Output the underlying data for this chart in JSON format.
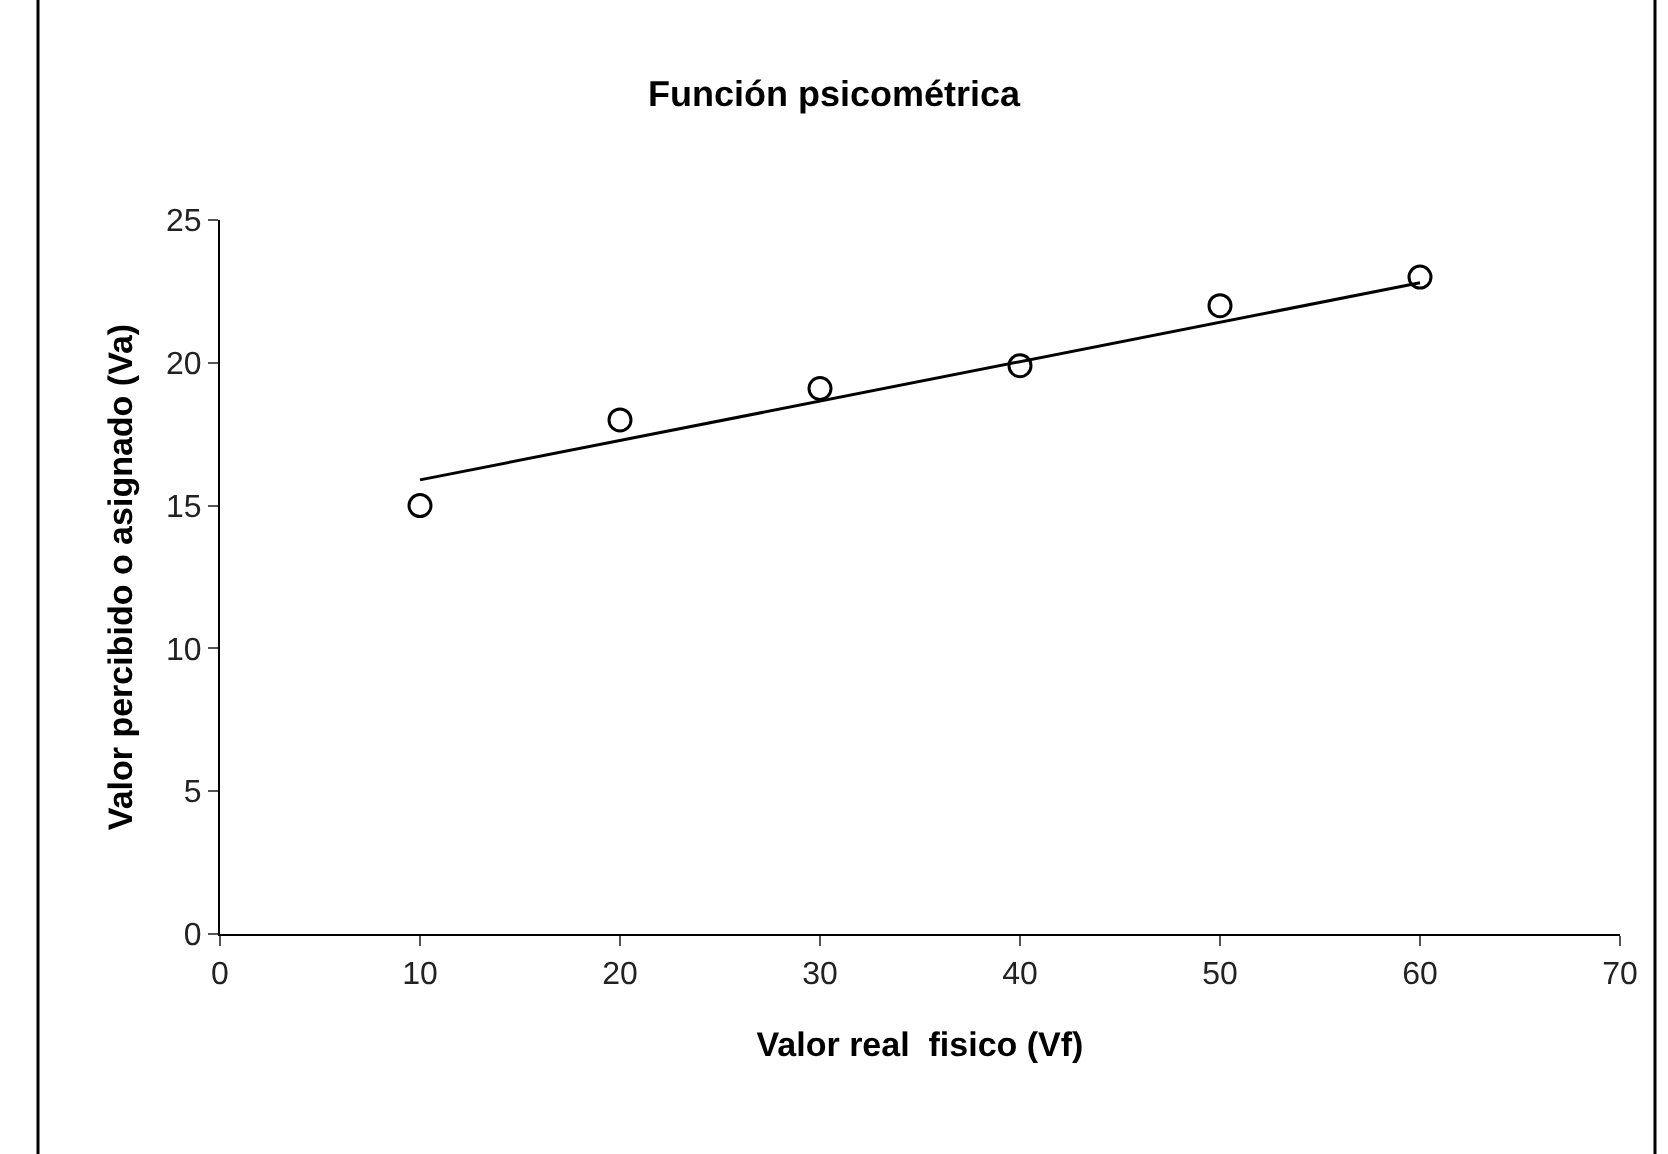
{
  "chart_data": {
    "type": "scatter",
    "title": "Función psicométrica",
    "xlabel": "Valor real  fisico (Vf)",
    "ylabel": "Valor percibido o asignado (Va)",
    "xlim": [
      0,
      70
    ],
    "xticks": [
      0,
      10,
      20,
      30,
      40,
      50,
      60,
      70
    ],
    "ylim": [
      0,
      25
    ],
    "yticks": [
      0,
      5,
      10,
      15,
      20,
      25
    ],
    "grid": false,
    "marker": "circle",
    "series": [
      {
        "color": "#000000",
        "x": [
          10,
          20,
          30,
          40,
          50,
          60
        ],
        "values": [
          15,
          18,
          19.1,
          19.9,
          22,
          23
        ]
      },
      {
        "type": "line",
        "color": "#000000",
        "marker": "none",
        "line_style": "solid",
        "x": [
          10,
          60
        ],
        "values": [
          15.9,
          22.8
        ]
      }
    ]
  }
}
